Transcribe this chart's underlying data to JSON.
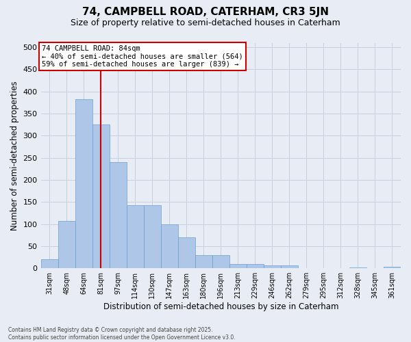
{
  "title_line1": "74, CAMPBELL ROAD, CATERHAM, CR3 5JN",
  "title_line2": "Size of property relative to semi-detached houses in Caterham",
  "xlabel": "Distribution of semi-detached houses by size in Caterham",
  "ylabel": "Number of semi-detached properties",
  "categories": [
    "31sqm",
    "48sqm",
    "64sqm",
    "81sqm",
    "97sqm",
    "114sqm",
    "130sqm",
    "147sqm",
    "163sqm",
    "180sqm",
    "196sqm",
    "213sqm",
    "229sqm",
    "246sqm",
    "262sqm",
    "279sqm",
    "295sqm",
    "312sqm",
    "328sqm",
    "345sqm",
    "361sqm"
  ],
  "values": [
    20,
    107,
    382,
    325,
    240,
    142,
    142,
    100,
    70,
    30,
    30,
    10,
    10,
    6,
    6,
    0,
    0,
    0,
    2,
    0,
    3
  ],
  "bar_color": "#aec6e8",
  "bar_edge_color": "#6aa0cc",
  "grid_color": "#c8d0de",
  "bg_color": "#e8edf5",
  "vline_color": "#cc0000",
  "vline_bar_index": 3,
  "annotation_title": "74 CAMPBELL ROAD: 84sqm",
  "annotation_line1": "← 40% of semi-detached houses are smaller (564)",
  "annotation_line2": "59% of semi-detached houses are larger (839) →",
  "annotation_box_facecolor": "#ffffff",
  "annotation_edge_color": "#cc0000",
  "footer": "Contains HM Land Registry data © Crown copyright and database right 2025.\nContains public sector information licensed under the Open Government Licence v3.0.",
  "ylim": [
    0,
    510
  ],
  "yticks": [
    0,
    50,
    100,
    150,
    200,
    250,
    300,
    350,
    400,
    450,
    500
  ]
}
